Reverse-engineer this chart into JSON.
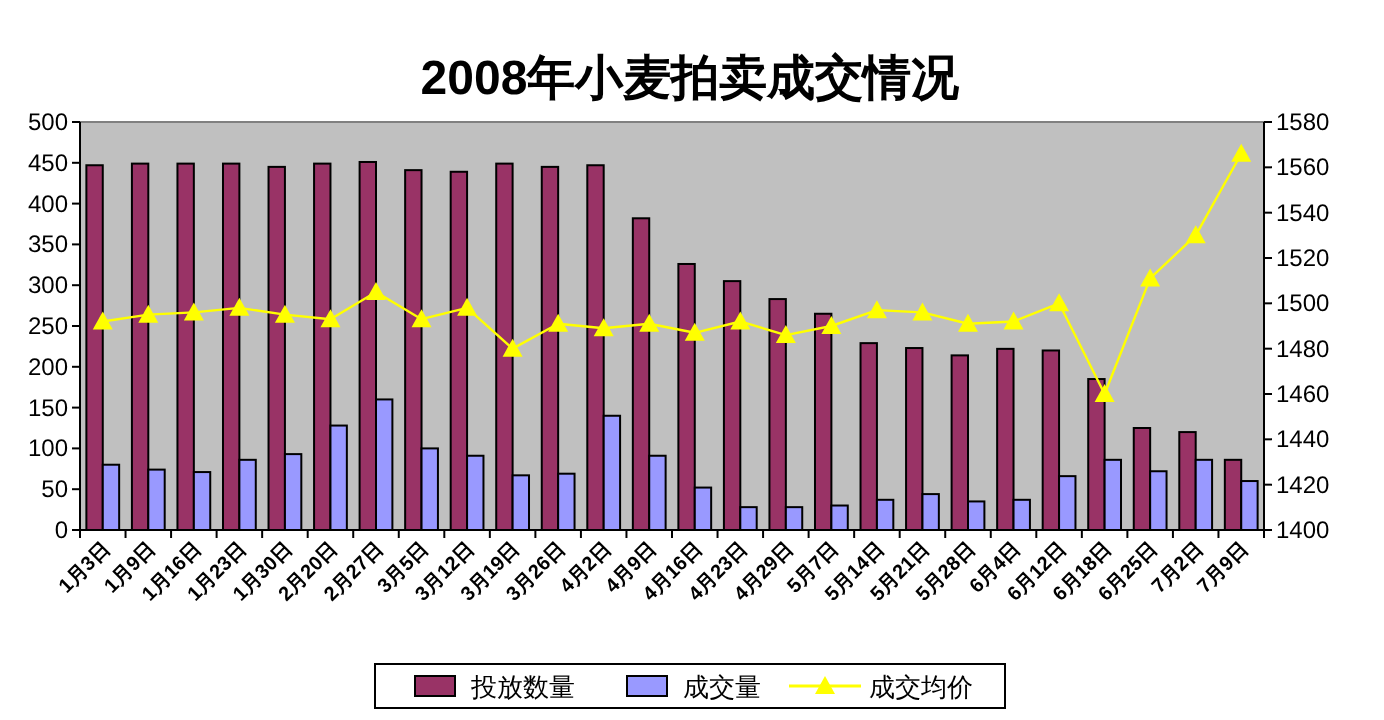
{
  "chart_data": {
    "type": "bar",
    "title": "2008年小麦拍卖成交情况",
    "categories": [
      "1月3日",
      "1月9日",
      "1月16日",
      "1月23日",
      "1月30日",
      "2月20日",
      "2月27日",
      "3月5日",
      "3月12日",
      "3月19日",
      "3月26日",
      "4月2日",
      "4月9日",
      "4月16日",
      "4月23日",
      "4月29日",
      "5月7日",
      "5月14日",
      "5月21日",
      "5月28日",
      "6月4日",
      "6月12日",
      "6月18日",
      "6月25日",
      "7月2日",
      "7月9日"
    ],
    "series": [
      {
        "name": "投放数量",
        "color": "#993366",
        "values": [
          447,
          449,
          449,
          449,
          445,
          449,
          451,
          441,
          439,
          449,
          445,
          447,
          382,
          326,
          305,
          283,
          265,
          229,
          223,
          214,
          222,
          220,
          185,
          125,
          120,
          86
        ]
      },
      {
        "name": "成交量",
        "color": "#9999ff",
        "values": [
          80,
          74,
          71,
          86,
          93,
          128,
          160,
          100,
          91,
          67,
          69,
          140,
          91,
          52,
          28,
          28,
          30,
          37,
          44,
          35,
          37,
          66,
          86,
          72,
          86,
          60
        ]
      },
      {
        "name": "成交均价",
        "color": "#ffff00",
        "type": "line",
        "axis": "y2",
        "values": [
          1492,
          1495,
          1496,
          1498,
          1495,
          1493,
          1505,
          1493,
          1498,
          1480,
          1491,
          1489,
          1491,
          1487,
          1492,
          1486,
          1490,
          1497,
          1496,
          1491,
          1492,
          1500,
          1460,
          1511,
          1530,
          1566
        ]
      }
    ],
    "marker": "triangle",
    "ylim": [
      0,
      500
    ],
    "yticks": [
      0,
      50,
      100,
      150,
      200,
      250,
      300,
      350,
      400,
      450,
      500
    ],
    "y2lim": [
      1400,
      1580
    ],
    "y2ticks": [
      1400,
      1420,
      1440,
      1460,
      1480,
      1500,
      1520,
      1540,
      1560,
      1580
    ],
    "legend": "bottom"
  }
}
